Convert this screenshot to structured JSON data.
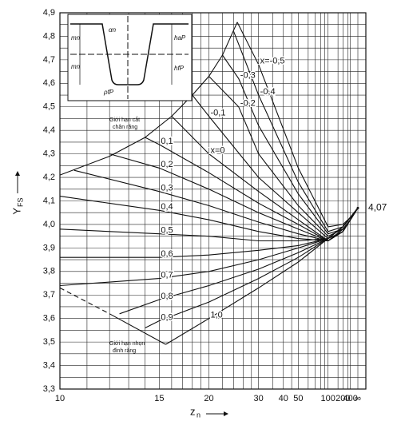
{
  "chart_data": {
    "type": "line",
    "y_label": {
      "main": "Y",
      "sub": "FS"
    },
    "x_label": {
      "main": "z",
      "sub": "n"
    },
    "xscale": "reciprocal",
    "xlim": [
      10,
      null
    ],
    "ylim": [
      3.3,
      4.9
    ],
    "xticks": [
      10,
      15,
      20,
      30,
      40,
      50,
      100,
      200,
      400,
      {
        "value": null,
        "label": "∞"
      }
    ],
    "xminor": [
      11,
      12,
      13,
      14,
      16,
      17,
      18,
      19,
      22,
      24,
      26,
      28,
      35,
      45,
      60,
      70,
      80,
      90,
      150,
      300
    ],
    "yticks": [
      {
        "value": 3.3,
        "label": "3,3"
      },
      {
        "value": 3.4,
        "label": "3,4"
      },
      {
        "value": 3.5,
        "label": "3,5"
      },
      {
        "value": 3.6,
        "label": "3,6"
      },
      {
        "value": 3.7,
        "label": "3,7"
      },
      {
        "value": 3.8,
        "label": "3,8"
      },
      {
        "value": 3.9,
        "label": "3,9"
      },
      {
        "value": 4.0,
        "label": "4,0"
      },
      {
        "value": 4.1,
        "label": "4,1"
      },
      {
        "value": 4.2,
        "label": "4,2"
      },
      {
        "value": 4.3,
        "label": "4,3"
      },
      {
        "value": 4.4,
        "label": "4,4"
      },
      {
        "value": 4.5,
        "label": "4,5"
      },
      {
        "value": 4.6,
        "label": "4,6"
      },
      {
        "value": 4.7,
        "label": "4,7"
      },
      {
        "value": 4.8,
        "label": "4,8"
      },
      {
        "value": 4.9,
        "label": "4,9"
      }
    ],
    "yminor": [
      3.35,
      3.45,
      3.55,
      3.65,
      3.75,
      3.85,
      3.95,
      4.05,
      4.15,
      4.25,
      4.35,
      4.45,
      4.55,
      4.65,
      4.75,
      4.85
    ],
    "grid": true,
    "color": "#111111",
    "asymptote": {
      "value": 4.07,
      "label": "4,07"
    },
    "series": [
      {
        "name": "x=-0,5",
        "x": [
          24.7,
          30,
          50,
          100,
          200,
          400
        ],
        "values": [
          4.86,
          4.68,
          4.24,
          3.99,
          4.0,
          4.03
        ]
      },
      {
        "name": "-0,4",
        "x": [
          24,
          30,
          50,
          100,
          200,
          400
        ],
        "values": [
          4.82,
          4.55,
          4.18,
          3.97,
          3.99,
          4.03
        ]
      },
      {
        "name": "-0,3",
        "x": [
          22,
          25,
          30,
          50,
          100,
          200,
          400
        ],
        "values": [
          4.72,
          4.62,
          4.42,
          4.13,
          3.96,
          3.98,
          4.02
        ]
      },
      {
        "name": "-0,2",
        "x": [
          20,
          25,
          30,
          50,
          100,
          200,
          400
        ],
        "values": [
          4.63,
          4.5,
          4.3,
          4.08,
          3.95,
          3.98,
          4.02
        ]
      },
      {
        "name": "-0,1",
        "x": [
          18,
          20,
          30,
          50,
          100,
          200,
          400
        ],
        "values": [
          4.55,
          4.46,
          4.2,
          4.05,
          3.94,
          3.97,
          4.02
        ]
      },
      {
        "name": "x=0",
        "x": [
          16,
          20,
          30,
          50,
          100,
          200,
          400
        ],
        "values": [
          4.46,
          4.3,
          4.14,
          4.02,
          3.93,
          3.97,
          4.02
        ]
      },
      {
        "name": "0,1",
        "x": [
          14,
          15,
          20,
          30,
          50,
          100,
          200,
          400
        ],
        "values": [
          4.37,
          4.34,
          4.22,
          4.09,
          4.0,
          3.93,
          3.97,
          4.02
        ]
      },
      {
        "name": "0,2",
        "x": [
          12,
          15,
          20,
          30,
          50,
          100,
          200,
          400
        ],
        "values": [
          4.3,
          4.24,
          4.15,
          4.05,
          3.98,
          3.93,
          3.97,
          4.02
        ]
      },
      {
        "name": "0,3",
        "x": [
          10.5,
          15,
          20,
          30,
          50,
          100,
          200,
          400
        ],
        "values": [
          4.23,
          4.14,
          4.08,
          4.01,
          3.96,
          3.93,
          3.98,
          4.02
        ]
      },
      {
        "name": "0,4",
        "x": [
          10,
          15,
          20,
          30,
          50,
          100,
          200,
          400
        ],
        "values": [
          4.12,
          4.06,
          4.02,
          3.97,
          3.94,
          3.93,
          3.98,
          4.02
        ]
      },
      {
        "name": "0,5",
        "x": [
          10,
          15,
          20,
          30,
          50,
          100,
          200,
          400
        ],
        "values": [
          3.98,
          3.96,
          3.95,
          3.93,
          3.93,
          3.94,
          3.99,
          4.03
        ]
      },
      {
        "name": "0,6",
        "x": [
          10,
          15,
          20,
          30,
          50,
          100,
          200,
          400
        ],
        "values": [
          3.86,
          3.86,
          3.87,
          3.89,
          3.91,
          3.94,
          3.99,
          4.03
        ]
      },
      {
        "name": "0,7",
        "x": [
          10,
          15,
          20,
          30,
          50,
          100,
          200,
          400
        ],
        "values": [
          3.74,
          3.77,
          3.8,
          3.85,
          3.9,
          3.94,
          3.99,
          4.03
        ]
      },
      {
        "name": "0,8",
        "x": [
          12.5,
          15,
          20,
          30,
          50,
          100,
          200,
          400
        ],
        "values": [
          3.62,
          3.68,
          3.74,
          3.81,
          3.88,
          3.94,
          3.99,
          4.03
        ]
      },
      {
        "name": "0,9",
        "x": [
          14,
          15,
          20,
          30,
          50,
          100,
          200,
          400
        ],
        "values": [
          3.56,
          3.59,
          3.67,
          3.77,
          3.86,
          3.94,
          3.99,
          4.03
        ]
      },
      {
        "name": "1,0",
        "x": [
          15.5,
          20,
          30,
          50,
          100,
          200,
          400
        ],
        "values": [
          3.49,
          3.6,
          3.73,
          3.84,
          3.94,
          3.99,
          4.03
        ]
      }
    ],
    "limits": [
      {
        "name": [
          "Giới hạn cắt",
          "chân răng"
        ],
        "x": [
          10,
          12,
          14,
          16,
          18,
          20,
          22,
          24.7
        ],
        "values": [
          4.21,
          4.29,
          4.37,
          4.46,
          4.55,
          4.63,
          4.72,
          4.86
        ]
      },
      {
        "name": [
          "Giới hạn nhọn",
          "đỉnh răng"
        ],
        "x": [
          12,
          15.5
        ],
        "values": [
          3.62,
          3.49
        ]
      },
      {
        "x": [
          10,
          12
        ],
        "values": [
          3.73,
          3.62
        ],
        "dashed": true
      }
    ],
    "inset": {
      "labels": [
        "mn",
        "αn",
        "haP",
        "mn",
        "hfP",
        "ρfP"
      ]
    }
  }
}
